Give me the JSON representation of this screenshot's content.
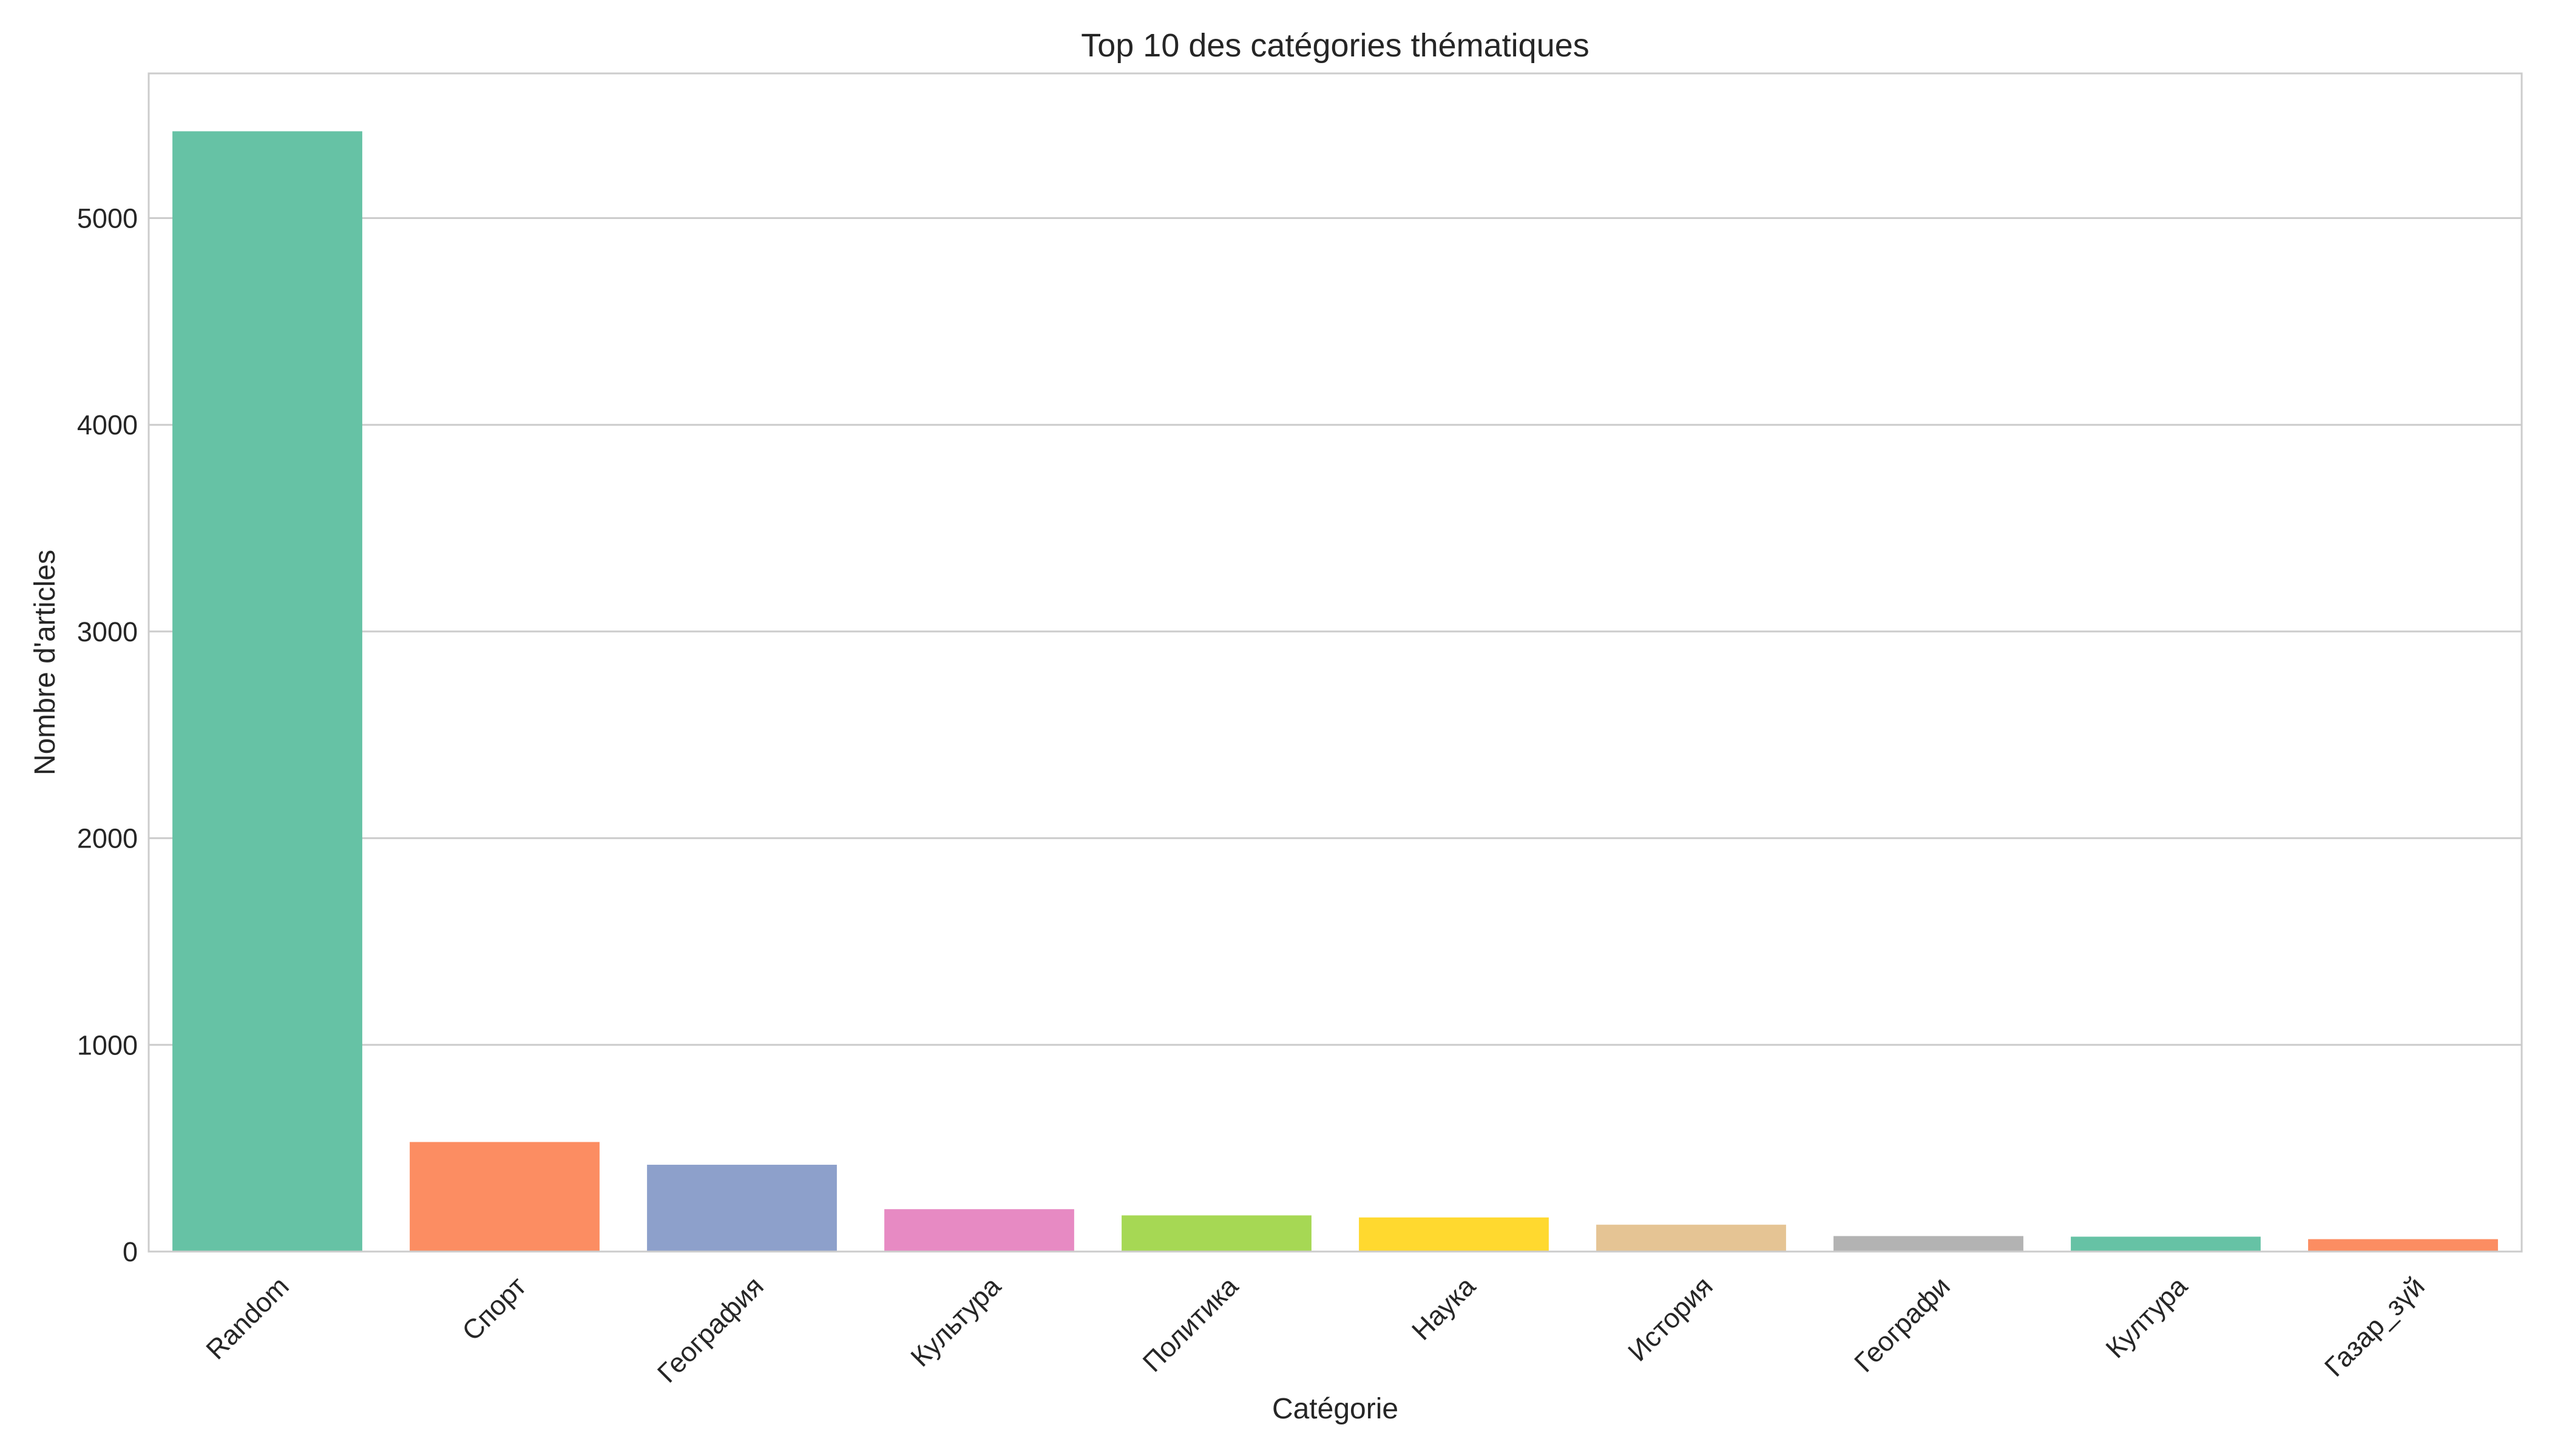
{
  "chart_data": {
    "type": "bar",
    "title": "Top 10 des catégories thématiques",
    "xlabel": "Catégorie",
    "ylabel": "Nombre d'articles",
    "categories": [
      "Random",
      "Спорт",
      "География",
      "Культура",
      "Политика",
      "Наука",
      "История",
      "Географи",
      "Култура",
      "Газар_зүй"
    ],
    "values": [
      5420,
      530,
      420,
      205,
      175,
      165,
      130,
      75,
      72,
      60
    ],
    "colors": [
      "#66c2a5",
      "#fc8d62",
      "#8da0cb",
      "#e78ac3",
      "#a6d854",
      "#ffd92f",
      "#e5c494",
      "#b3b3b3",
      "#66c2a5",
      "#fc8d62"
    ],
    "ylim": [
      0,
      5700
    ],
    "yticks": [
      0,
      1000,
      2000,
      3000,
      4000,
      5000
    ],
    "grid": "y",
    "legend": "none"
  }
}
